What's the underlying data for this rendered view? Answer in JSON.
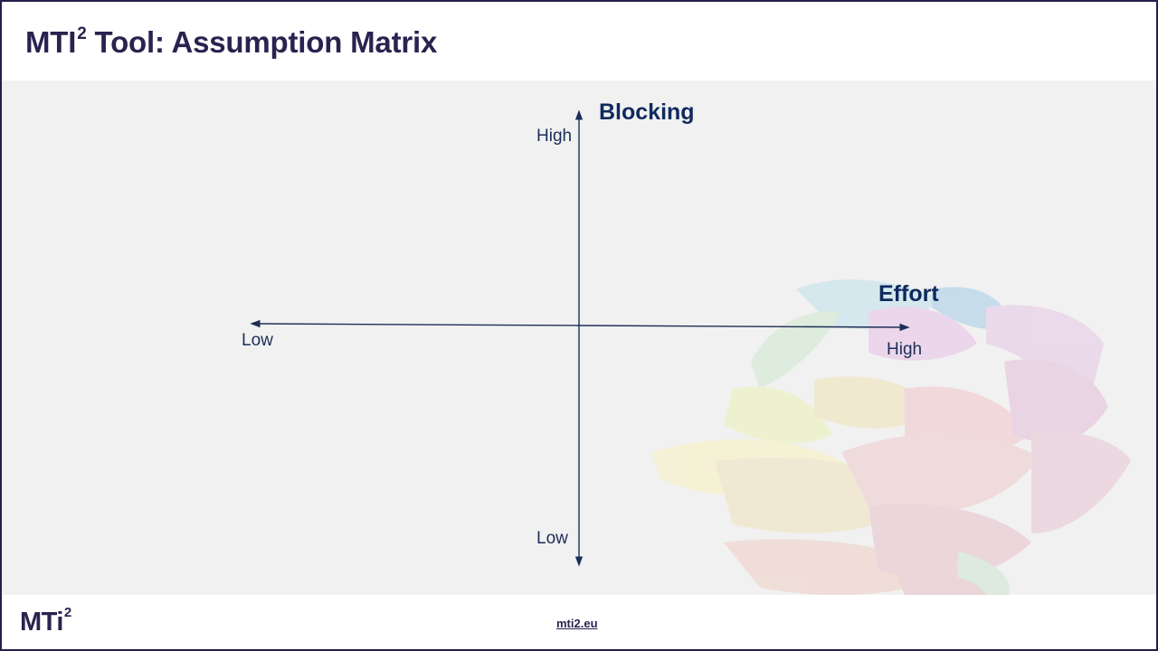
{
  "header": {
    "title_main": "MTI",
    "title_sup": "2",
    "title_rest": " Tool: Assumption Matrix"
  },
  "matrix": {
    "vertical_axis": {
      "title": "Blocking",
      "high_label": "High",
      "low_label": "Low"
    },
    "horizontal_axis": {
      "title": "Effort",
      "high_label": "High",
      "low_label": "Low"
    }
  },
  "footer": {
    "logo_text": "MTi",
    "logo_sup": "2",
    "link_text": "mti2.eu"
  },
  "colors": {
    "brand": "#29234f",
    "axis": "#1c2e58",
    "axis_title": "#0f2a5e",
    "background": "#f1f1f1"
  },
  "icons": {
    "watermark": "rose-watermark"
  }
}
